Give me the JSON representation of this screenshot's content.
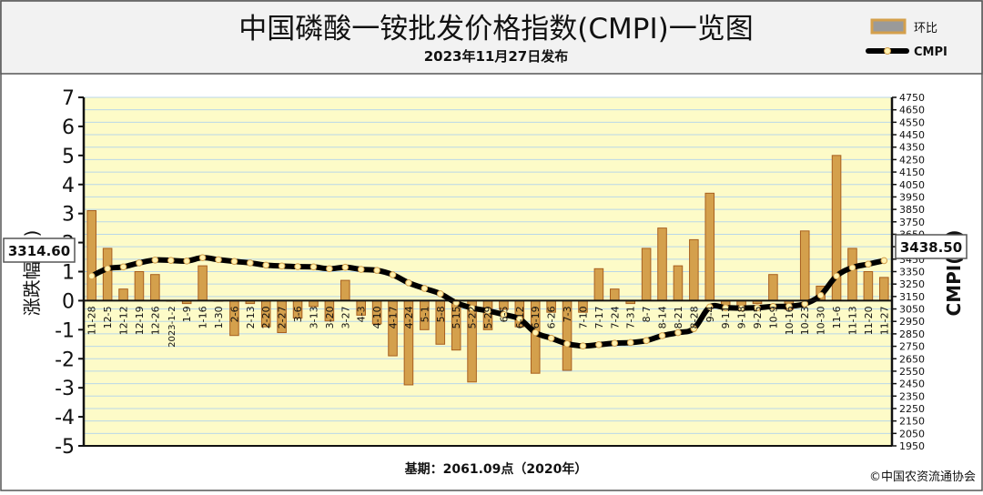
{
  "header": {
    "title": "中国磷酸一铵批发价格指数(CMPI)一览图",
    "subtitle": "2023年11月27日发布"
  },
  "legend": {
    "bar_label": "环比",
    "line_label": "CMPI"
  },
  "footer": {
    "base_note": "基期：2061.09点（2020年）",
    "copyright": "©中国农资流通协会"
  },
  "callouts": {
    "first_value": "3314.60",
    "last_value": "3438.50"
  },
  "colors": {
    "panel_bg": "#f2f2f2",
    "plot_bg": "#fdfbc8",
    "gridline": "#b9d7e8",
    "bar_fill": "#d4a04c",
    "bar_edge": "#a86020",
    "line": "#000000",
    "marker": "#fff2b0"
  },
  "chart_data": {
    "type": "bar",
    "title": "中国磷酸一铵批发价格指数(CMPI)一览图",
    "categories": [
      "11-28",
      "12-5",
      "12-12",
      "12-19",
      "12-26",
      "2023-1-2",
      "1-9",
      "1-16",
      "1-30",
      "2-6",
      "2-13",
      "2-20",
      "2-27",
      "3-6",
      "3-13",
      "3-20",
      "3-27",
      "4-3",
      "4-10",
      "4-17",
      "4-24",
      "5-1",
      "5-8",
      "5-15",
      "5-22",
      "5-29",
      "6-5",
      "6-12",
      "6-19",
      "6-26",
      "7-3",
      "7-10",
      "7-17",
      "7-24",
      "7-31",
      "8-7",
      "8-14",
      "8-21",
      "8-28",
      "9-4",
      "9-11",
      "9-18",
      "9-25",
      "10-9",
      "10-16",
      "10-23",
      "10-30",
      "11-6",
      "11-13",
      "11-20",
      "11-27"
    ],
    "category_labels": [
      "11-28",
      "12-5",
      "12-12",
      "12-19",
      "12-26",
      "2023-1-2",
      "1-9",
      "1-16",
      "1-30",
      "2-6",
      "2-13",
      "2-20",
      "2-27",
      "3-6",
      "3-13",
      "3-20",
      "3-27",
      "4-3",
      "4-10",
      "4-17",
      "4-24",
      "5-1",
      "5-8",
      "5-15",
      "5-22",
      "5-29",
      "6-5",
      "6-12",
      "6-19",
      "6-26",
      "7-3",
      "7-10",
      "7-17",
      "7-24",
      "7-31",
      "8-7",
      "8-14",
      "8-21",
      "8-28",
      "9-4",
      "9-11",
      "9-18",
      "9-25",
      "10-9",
      "10-16",
      "10-23",
      "10-30",
      "11-6",
      "11-13",
      "11-20",
      "11-27"
    ],
    "series": [
      {
        "name": "环比",
        "axis": "left",
        "values": [
          3.1,
          1.8,
          0.4,
          1.0,
          0.9,
          0.0,
          -0.1,
          1.2,
          0.0,
          -1.2,
          -0.1,
          -0.9,
          -1.1,
          -0.6,
          -0.2,
          -0.7,
          0.7,
          -0.5,
          -0.8,
          -1.9,
          -2.9,
          -1.0,
          -1.5,
          -1.7,
          -2.8,
          -1.0,
          -0.3,
          -0.9,
          -2.5,
          -0.4,
          -2.4,
          -0.4,
          1.1,
          0.4,
          -0.1,
          1.8,
          2.5,
          1.2,
          2.1,
          3.7,
          -0.3,
          -0.2,
          -0.1,
          0.9,
          -0.3,
          2.4,
          0.5,
          5.0,
          1.8,
          1.0,
          0.8
        ]
      },
      {
        "name": "CMPI",
        "axis": "right",
        "values": [
          3314.6,
          3374,
          3388,
          3420,
          3443,
          3440,
          3435,
          3462,
          3446,
          3432,
          3420,
          3402,
          3395,
          3390,
          3388,
          3373,
          3385,
          3368,
          3360,
          3325,
          3260,
          3215,
          3172,
          3100,
          3058,
          3035,
          3005,
          2970,
          2860,
          2815,
          2770,
          2753,
          2763,
          2775,
          2780,
          2796,
          2835,
          2860,
          2892,
          3065,
          3060,
          3057,
          3060,
          3070,
          3072,
          3091,
          3160,
          3315,
          3382,
          3410,
          3438.5
        ]
      }
    ],
    "ylabel": "涨跌幅(%)",
    "y2label": "CMPI(点)",
    "ylim": [
      -5,
      7
    ],
    "y2lim": [
      1950,
      4750
    ],
    "yticks": [
      -5,
      -4,
      -3,
      -2,
      -1,
      0,
      1,
      2,
      3,
      4,
      5,
      6,
      7
    ],
    "y2ticks": [
      1950,
      2050,
      2150,
      2250,
      2350,
      2450,
      2550,
      2650,
      2750,
      2850,
      2950,
      3050,
      3150,
      3250,
      3350,
      3450,
      3550,
      3650,
      3750,
      3850,
      3950,
      4050,
      4150,
      4250,
      4350,
      4450,
      4550,
      4650,
      4750
    ],
    "grid": true,
    "legend_position": "top-right"
  }
}
